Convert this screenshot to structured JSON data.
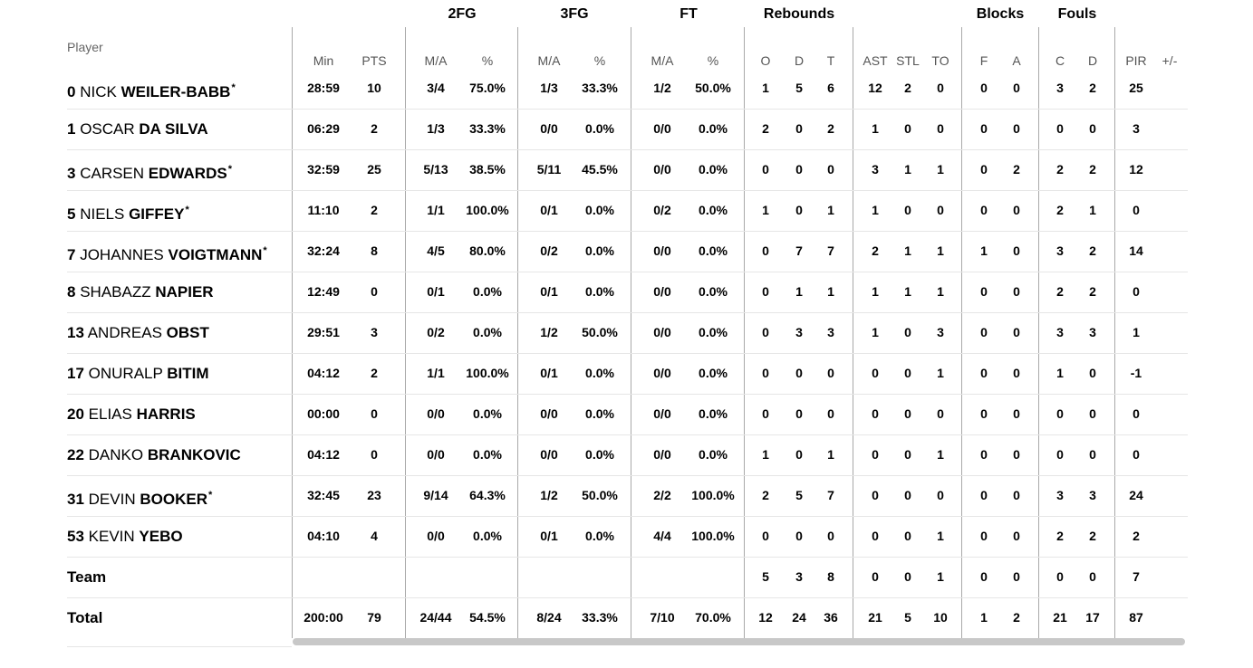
{
  "headers": {
    "player": "Player",
    "groups": {
      "fg2": "2FG",
      "fg3": "3FG",
      "ft": "FT",
      "rebounds": "Rebounds",
      "blocks": "Blocks",
      "fouls": "Fouls"
    },
    "columns": {
      "min": "Min",
      "pts": "PTS",
      "fg2_ma": "M/A",
      "fg2_pct": "%",
      "fg3_ma": "M/A",
      "fg3_pct": "%",
      "ft_ma": "M/A",
      "ft_pct": "%",
      "reb_o": "O",
      "reb_d": "D",
      "reb_t": "T",
      "ast": "AST",
      "stl": "STL",
      "to": "TO",
      "blk_f": "F",
      "blk_a": "A",
      "foul_c": "C",
      "foul_d": "D",
      "pir": "PIR",
      "pm": "+/-"
    }
  },
  "players": [
    {
      "num": "0",
      "first": "NICK",
      "last": "WEILER-BABB",
      "star": "*",
      "min": "28:59",
      "pts": "10",
      "fg2_ma": "3/4",
      "fg2_pct": "75.0%",
      "fg3_ma": "1/3",
      "fg3_pct": "33.3%",
      "ft_ma": "1/2",
      "ft_pct": "50.0%",
      "reb_o": "1",
      "reb_d": "5",
      "reb_t": "6",
      "ast": "12",
      "stl": "2",
      "to": "0",
      "blk_f": "0",
      "blk_a": "0",
      "foul_c": "3",
      "foul_d": "2",
      "pir": "25",
      "pm": ""
    },
    {
      "num": "1",
      "first": "OSCAR",
      "last": "DA SILVA",
      "star": "",
      "min": "06:29",
      "pts": "2",
      "fg2_ma": "1/3",
      "fg2_pct": "33.3%",
      "fg3_ma": "0/0",
      "fg3_pct": "0.0%",
      "ft_ma": "0/0",
      "ft_pct": "0.0%",
      "reb_o": "2",
      "reb_d": "0",
      "reb_t": "2",
      "ast": "1",
      "stl": "0",
      "to": "0",
      "blk_f": "0",
      "blk_a": "0",
      "foul_c": "0",
      "foul_d": "0",
      "pir": "3",
      "pm": ""
    },
    {
      "num": "3",
      "first": "CARSEN",
      "last": "EDWARDS",
      "star": "*",
      "min": "32:59",
      "pts": "25",
      "fg2_ma": "5/13",
      "fg2_pct": "38.5%",
      "fg3_ma": "5/11",
      "fg3_pct": "45.5%",
      "ft_ma": "0/0",
      "ft_pct": "0.0%",
      "reb_o": "0",
      "reb_d": "0",
      "reb_t": "0",
      "ast": "3",
      "stl": "1",
      "to": "1",
      "blk_f": "0",
      "blk_a": "2",
      "foul_c": "2",
      "foul_d": "2",
      "pir": "12",
      "pm": ""
    },
    {
      "num": "5",
      "first": "NIELS",
      "last": "GIFFEY",
      "star": "*",
      "min": "11:10",
      "pts": "2",
      "fg2_ma": "1/1",
      "fg2_pct": "100.0%",
      "fg3_ma": "0/1",
      "fg3_pct": "0.0%",
      "ft_ma": "0/2",
      "ft_pct": "0.0%",
      "reb_o": "1",
      "reb_d": "0",
      "reb_t": "1",
      "ast": "1",
      "stl": "0",
      "to": "0",
      "blk_f": "0",
      "blk_a": "0",
      "foul_c": "2",
      "foul_d": "1",
      "pir": "0",
      "pm": ""
    },
    {
      "num": "7",
      "first": "JOHANNES",
      "last": "VOIGTMANN",
      "star": "*",
      "min": "32:24",
      "pts": "8",
      "fg2_ma": "4/5",
      "fg2_pct": "80.0%",
      "fg3_ma": "0/2",
      "fg3_pct": "0.0%",
      "ft_ma": "0/0",
      "ft_pct": "0.0%",
      "reb_o": "0",
      "reb_d": "7",
      "reb_t": "7",
      "ast": "2",
      "stl": "1",
      "to": "1",
      "blk_f": "1",
      "blk_a": "0",
      "foul_c": "3",
      "foul_d": "2",
      "pir": "14",
      "pm": ""
    },
    {
      "num": "8",
      "first": "SHABAZZ",
      "last": "NAPIER",
      "star": "",
      "min": "12:49",
      "pts": "0",
      "fg2_ma": "0/1",
      "fg2_pct": "0.0%",
      "fg3_ma": "0/1",
      "fg3_pct": "0.0%",
      "ft_ma": "0/0",
      "ft_pct": "0.0%",
      "reb_o": "0",
      "reb_d": "1",
      "reb_t": "1",
      "ast": "1",
      "stl": "1",
      "to": "1",
      "blk_f": "0",
      "blk_a": "0",
      "foul_c": "2",
      "foul_d": "2",
      "pir": "0",
      "pm": ""
    },
    {
      "num": "13",
      "first": "ANDREAS",
      "last": "OBST",
      "star": "",
      "min": "29:51",
      "pts": "3",
      "fg2_ma": "0/2",
      "fg2_pct": "0.0%",
      "fg3_ma": "1/2",
      "fg3_pct": "50.0%",
      "ft_ma": "0/0",
      "ft_pct": "0.0%",
      "reb_o": "0",
      "reb_d": "3",
      "reb_t": "3",
      "ast": "1",
      "stl": "0",
      "to": "3",
      "blk_f": "0",
      "blk_a": "0",
      "foul_c": "3",
      "foul_d": "3",
      "pir": "1",
      "pm": ""
    },
    {
      "num": "17",
      "first": "ONURALP",
      "last": "BITIM",
      "star": "",
      "min": "04:12",
      "pts": "2",
      "fg2_ma": "1/1",
      "fg2_pct": "100.0%",
      "fg3_ma": "0/1",
      "fg3_pct": "0.0%",
      "ft_ma": "0/0",
      "ft_pct": "0.0%",
      "reb_o": "0",
      "reb_d": "0",
      "reb_t": "0",
      "ast": "0",
      "stl": "0",
      "to": "1",
      "blk_f": "0",
      "blk_a": "0",
      "foul_c": "1",
      "foul_d": "0",
      "pir": "-1",
      "pm": ""
    },
    {
      "num": "20",
      "first": "ELIAS",
      "last": "HARRIS",
      "star": "",
      "min": "00:00",
      "pts": "0",
      "fg2_ma": "0/0",
      "fg2_pct": "0.0%",
      "fg3_ma": "0/0",
      "fg3_pct": "0.0%",
      "ft_ma": "0/0",
      "ft_pct": "0.0%",
      "reb_o": "0",
      "reb_d": "0",
      "reb_t": "0",
      "ast": "0",
      "stl": "0",
      "to": "0",
      "blk_f": "0",
      "blk_a": "0",
      "foul_c": "0",
      "foul_d": "0",
      "pir": "0",
      "pm": ""
    },
    {
      "num": "22",
      "first": "DANKO",
      "last": "BRANKOVIC",
      "star": "",
      "min": "04:12",
      "pts": "0",
      "fg2_ma": "0/0",
      "fg2_pct": "0.0%",
      "fg3_ma": "0/0",
      "fg3_pct": "0.0%",
      "ft_ma": "0/0",
      "ft_pct": "0.0%",
      "reb_o": "1",
      "reb_d": "0",
      "reb_t": "1",
      "ast": "0",
      "stl": "0",
      "to": "1",
      "blk_f": "0",
      "blk_a": "0",
      "foul_c": "0",
      "foul_d": "0",
      "pir": "0",
      "pm": ""
    },
    {
      "num": "31",
      "first": "DEVIN",
      "last": "BOOKER",
      "star": "*",
      "min": "32:45",
      "pts": "23",
      "fg2_ma": "9/14",
      "fg2_pct": "64.3%",
      "fg3_ma": "1/2",
      "fg3_pct": "50.0%",
      "ft_ma": "2/2",
      "ft_pct": "100.0%",
      "reb_o": "2",
      "reb_d": "5",
      "reb_t": "7",
      "ast": "0",
      "stl": "0",
      "to": "0",
      "blk_f": "0",
      "blk_a": "0",
      "foul_c": "3",
      "foul_d": "3",
      "pir": "24",
      "pm": ""
    },
    {
      "num": "53",
      "first": "KEVIN",
      "last": "YEBO",
      "star": "",
      "min": "04:10",
      "pts": "4",
      "fg2_ma": "0/0",
      "fg2_pct": "0.0%",
      "fg3_ma": "0/1",
      "fg3_pct": "0.0%",
      "ft_ma": "4/4",
      "ft_pct": "100.0%",
      "reb_o": "0",
      "reb_d": "0",
      "reb_t": "0",
      "ast": "0",
      "stl": "0",
      "to": "1",
      "blk_f": "0",
      "blk_a": "0",
      "foul_c": "2",
      "foul_d": "2",
      "pir": "2",
      "pm": ""
    }
  ],
  "team": {
    "label": "Team",
    "min": "",
    "pts": "",
    "fg2_ma": "",
    "fg2_pct": "",
    "fg3_ma": "",
    "fg3_pct": "",
    "ft_ma": "",
    "ft_pct": "",
    "reb_o": "5",
    "reb_d": "3",
    "reb_t": "8",
    "ast": "0",
    "stl": "0",
    "to": "1",
    "blk_f": "0",
    "blk_a": "0",
    "foul_c": "0",
    "foul_d": "0",
    "pir": "7",
    "pm": ""
  },
  "total": {
    "label": "Total",
    "min": "200:00",
    "pts": "79",
    "fg2_ma": "24/44",
    "fg2_pct": "54.5%",
    "fg3_ma": "8/24",
    "fg3_pct": "33.3%",
    "ft_ma": "7/10",
    "ft_pct": "70.0%",
    "reb_o": "12",
    "reb_d": "24",
    "reb_t": "36",
    "ast": "21",
    "stl": "5",
    "to": "10",
    "blk_f": "1",
    "blk_a": "2",
    "foul_c": "21",
    "foul_d": "17",
    "pir": "87",
    "pm": ""
  }
}
